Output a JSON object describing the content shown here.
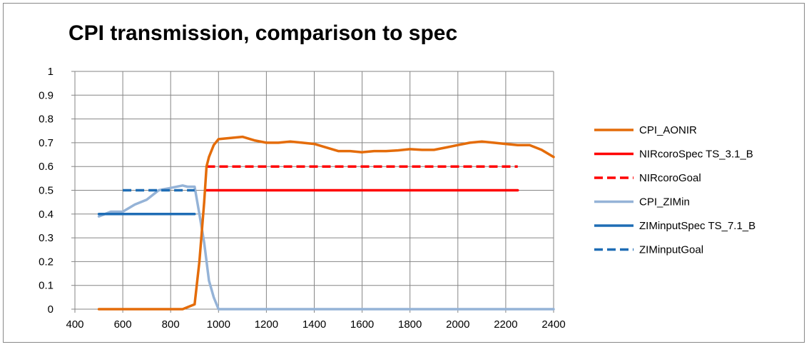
{
  "chart_data": {
    "type": "line",
    "title": "CPI transmission, comparison to spec",
    "xlabel": "",
    "ylabel": "",
    "xlim": [
      400,
      2400
    ],
    "ylim": [
      0,
      1
    ],
    "x_ticks": [
      "400",
      "600",
      "800",
      "1000",
      "1200",
      "1400",
      "1600",
      "1800",
      "2000",
      "2200",
      "2400"
    ],
    "y_ticks": [
      "0",
      "0.1",
      "0.2",
      "0.3",
      "0.4",
      "0.5",
      "0.6",
      "0.7",
      "0.8",
      "0.9",
      "1"
    ],
    "grid": true,
    "legend_position": "right",
    "series": [
      {
        "name": "CPI_AONIR",
        "color": "#E46C0A",
        "dash": "solid",
        "x": [
          500,
          850,
          900,
          920,
          940,
          950,
          960,
          980,
          1000,
          1050,
          1100,
          1150,
          1200,
          1250,
          1300,
          1350,
          1400,
          1450,
          1500,
          1550,
          1600,
          1650,
          1700,
          1750,
          1800,
          1850,
          1900,
          1950,
          2000,
          2050,
          2100,
          2150,
          2200,
          2250,
          2300,
          2350,
          2400
        ],
        "y": [
          0,
          0,
          0.02,
          0.2,
          0.45,
          0.6,
          0.64,
          0.69,
          0.715,
          0.72,
          0.725,
          0.71,
          0.7,
          0.7,
          0.705,
          0.7,
          0.695,
          0.68,
          0.665,
          0.665,
          0.66,
          0.665,
          0.665,
          0.668,
          0.673,
          0.67,
          0.67,
          0.68,
          0.69,
          0.7,
          0.705,
          0.7,
          0.695,
          0.69,
          0.69,
          0.67,
          0.64
        ]
      },
      {
        "name": "NIRcoroSpec TS_3.1_B",
        "color": "#FF0000",
        "dash": "solid",
        "x": [
          950,
          2250
        ],
        "y": [
          0.5,
          0.5
        ]
      },
      {
        "name": "NIRcoroGoal",
        "color": "#FF0000",
        "dash": "dashed",
        "x": [
          950,
          2250
        ],
        "y": [
          0.6,
          0.6
        ]
      },
      {
        "name": "CPI_ZIMin",
        "color": "#95B3D7",
        "dash": "solid",
        "x": [
          500,
          550,
          600,
          650,
          700,
          750,
          800,
          850,
          870,
          900,
          920,
          940,
          960,
          980,
          1000,
          1100,
          1400,
          2400
        ],
        "y": [
          0.39,
          0.41,
          0.41,
          0.44,
          0.46,
          0.5,
          0.51,
          0.52,
          0.515,
          0.515,
          0.4,
          0.28,
          0.12,
          0.05,
          0,
          0,
          0,
          0
        ]
      },
      {
        "name": "ZIMinputSpec TS_7.1_B",
        "color": "#1F6DB5",
        "dash": "solid",
        "x": [
          500,
          900
        ],
        "y": [
          0.4,
          0.4
        ]
      },
      {
        "name": "ZIMinputGoal",
        "color": "#1F6DB5",
        "dash": "dashed",
        "x": [
          600,
          900
        ],
        "y": [
          0.5,
          0.5
        ]
      }
    ]
  }
}
